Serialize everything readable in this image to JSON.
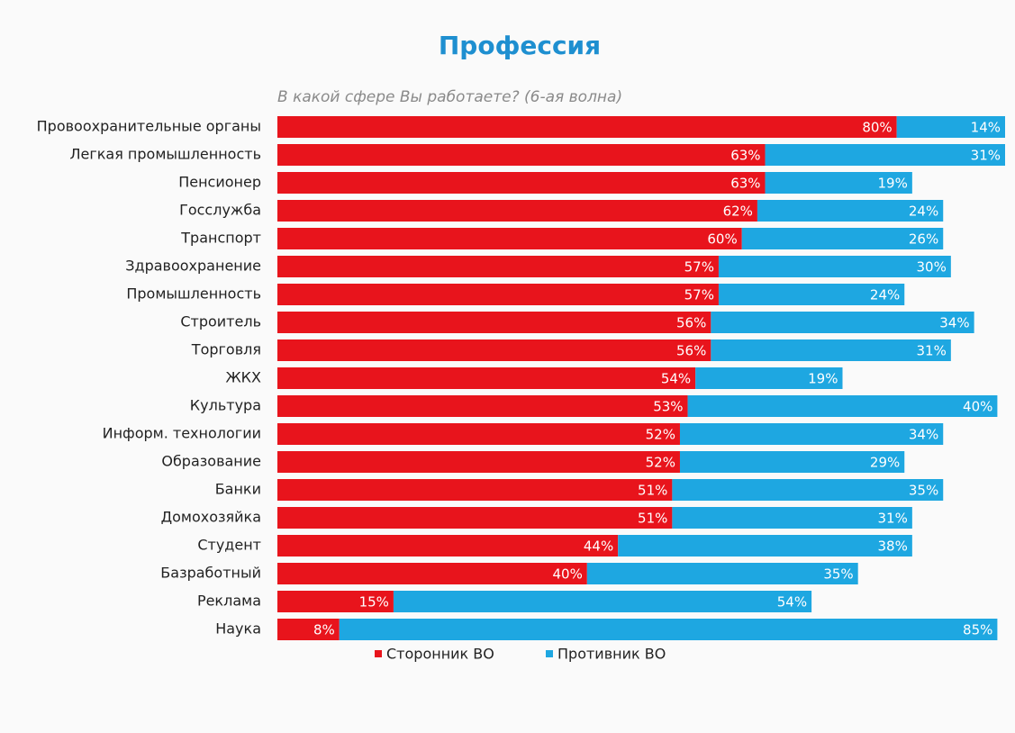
{
  "chart_data": {
    "type": "stacked_bar_horizontal",
    "title": "Профессия",
    "subtitle": "В какой сфере Вы работаете? (6-ая волна)",
    "categories": [
      "Провоохранительные органы",
      "Легкая промышленность",
      "Пенсионер",
      "Госслужба",
      "Транспорт",
      "Здравоохранение",
      "Промышленность",
      "Строитель",
      "Торговля",
      "ЖКХ",
      "Культура",
      "Информ. технологии",
      "Образование",
      "Банки",
      "Домохозяйка",
      "Студент",
      "Базработный",
      "Реклама",
      "Наука"
    ],
    "series": [
      {
        "name": "Сторонник ВО",
        "color": "#e8141c",
        "values": [
          80,
          63,
          63,
          62,
          60,
          57,
          57,
          56,
          56,
          54,
          53,
          52,
          52,
          51,
          51,
          44,
          40,
          15,
          8
        ],
        "value_labels": [
          "80%",
          "63%",
          "63%",
          "62%",
          "60%",
          "57%",
          "57%",
          "56%",
          "56%",
          "54%",
          "53%",
          "52%",
          "52%",
          "51%",
          "51%",
          "44%",
          "40%",
          "15%",
          "8%"
        ]
      },
      {
        "name": "Противник ВО",
        "color": "#1ea7e1",
        "values": [
          14,
          31,
          19,
          24,
          26,
          30,
          24,
          34,
          31,
          19,
          40,
          34,
          29,
          35,
          31,
          38,
          35,
          54,
          85
        ],
        "value_labels": [
          "14%",
          "31%",
          "19%",
          "24%",
          "26%",
          "30%",
          "24%",
          "34%",
          "31%",
          "19%",
          "40%",
          "34%",
          "29%",
          "35%",
          "31%",
          "38%",
          "35%",
          "54%",
          "85%"
        ]
      }
    ]
  }
}
